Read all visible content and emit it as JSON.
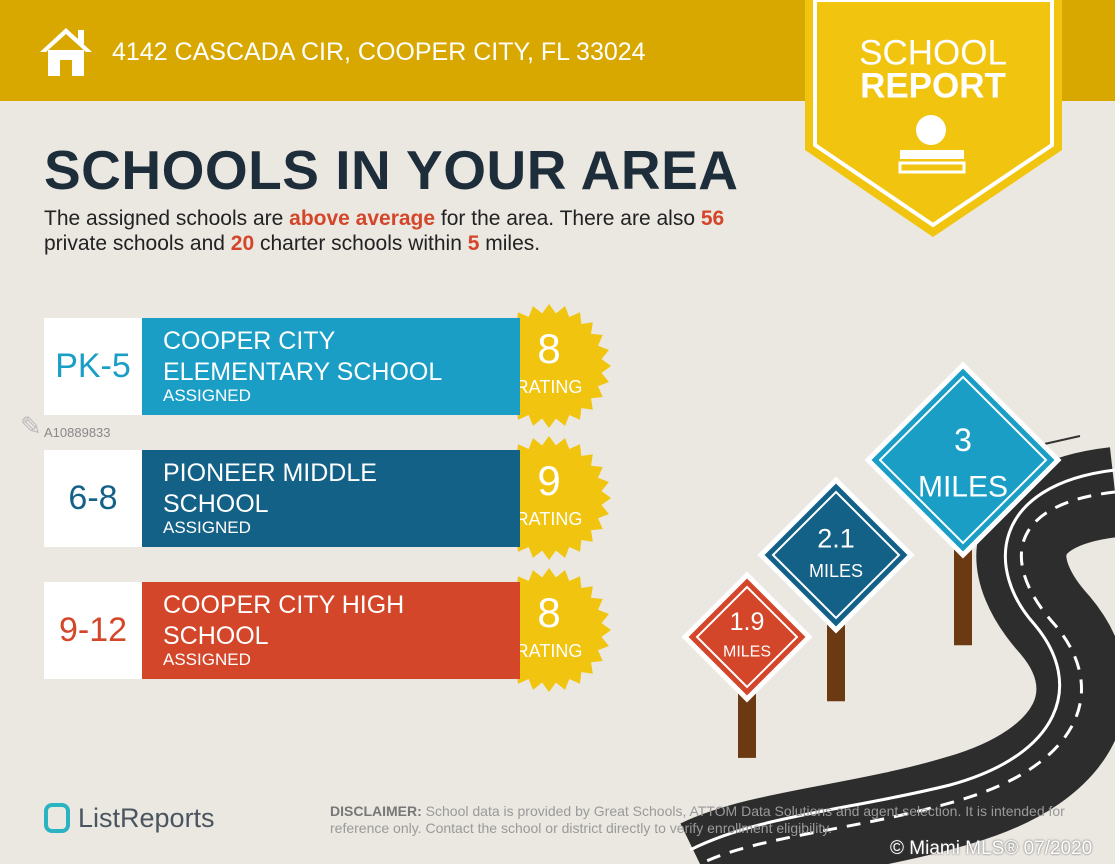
{
  "header": {
    "address": "4142 CASCADA CIR, COOPER CITY, FL 33024",
    "badge_line1": "SCHOOL",
    "badge_line2": "REPORT"
  },
  "title": "SCHOOLS IN YOUR AREA",
  "intro": [
    {
      "text": "The assigned schools are ",
      "highlight": false
    },
    {
      "text": "above average",
      "highlight": true
    },
    {
      "text": " for the area. There are also ",
      "highlight": false
    },
    {
      "text": "56",
      "highlight": true
    },
    {
      "text": " private schools and ",
      "highlight": false
    },
    {
      "text": "20",
      "highlight": true
    },
    {
      "text": " charter schools within ",
      "highlight": false
    },
    {
      "text": "5",
      "highlight": true
    },
    {
      "text": " miles.",
      "highlight": false
    }
  ],
  "schools": [
    {
      "grades": "PK-5",
      "name": "COOPER CITY ELEMENTARY SCHOOL",
      "status": "ASSIGNED",
      "rating": 8,
      "rating_label": "RATING",
      "color": "#1b9ec6"
    },
    {
      "grades": "6-8",
      "name": "PIONEER MIDDLE SCHOOL",
      "status": "ASSIGNED",
      "rating": 9,
      "rating_label": "RATING",
      "color": "#146187"
    },
    {
      "grades": "9-12",
      "name": "COOPER CITY HIGH SCHOOL",
      "status": "ASSIGNED",
      "rating": 8,
      "rating_label": "RATING",
      "color": "#d4462a"
    }
  ],
  "watermark": "A10889833",
  "signs": [
    {
      "distance": "3",
      "unit": "MILES",
      "color": "#1b9ec6"
    },
    {
      "distance": "2.1",
      "unit": "MILES",
      "color": "#146187"
    },
    {
      "distance": "1.9",
      "unit": "MILES",
      "color": "#d4462a"
    }
  ],
  "footer": {
    "brand": "ListReports",
    "disclaimer_label": "DISCLAIMER:",
    "disclaimer": "School data is provided by Great Schools, ATTOM Data Solutions and agent selection. It is intended for reference only. Contact the school or district directly to verify enrollment eligibility.",
    "copyright": "© Miami MLS® 07/2020"
  }
}
